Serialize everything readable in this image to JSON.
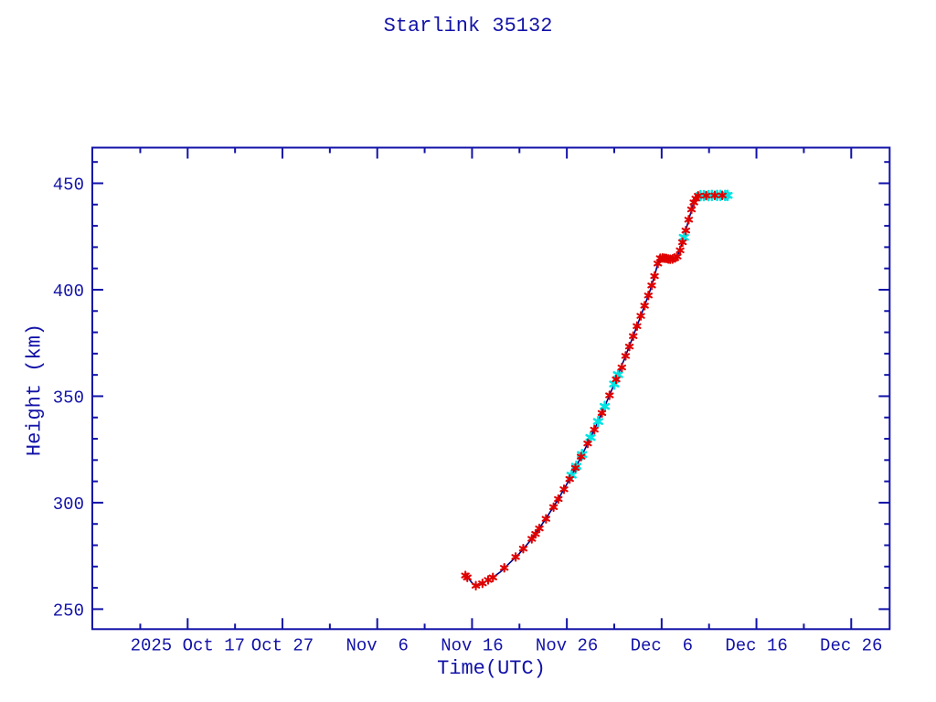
{
  "page": {
    "background_color": "#ffffff",
    "accent_color": "#1212a8"
  },
  "chart_data": {
    "type": "line",
    "title": "Starlink 35132",
    "xlabel": "Time(UTC)",
    "ylabel": "Height (km)",
    "grid": false,
    "legend": "none",
    "colors": {
      "axis": "#1212a8",
      "text": "#1212a8",
      "line": "#000080",
      "marker_red": "#e00000",
      "marker_cyan": "#00e4e4"
    },
    "x_unit": "days since 2025 Oct 17 (UTC)",
    "xlim_days": [
      -10.1,
      74.1
    ],
    "ylim": [
      240.5,
      466.5
    ],
    "y_major_ticks": [
      250,
      300,
      350,
      400,
      450
    ],
    "y_minor_step_km": 10,
    "x_major_ticks": [
      {
        "day": 0,
        "label": "2025 Oct 17"
      },
      {
        "day": 10,
        "label": "Oct 27"
      },
      {
        "day": 20,
        "label": "Nov  6"
      },
      {
        "day": 30,
        "label": "Nov 16"
      },
      {
        "day": 40,
        "label": "Nov 26"
      },
      {
        "day": 50,
        "label": "Dec  6"
      },
      {
        "day": 60,
        "label": "Dec 16"
      },
      {
        "day": 70,
        "label": "Dec 26"
      }
    ],
    "x_minor_tick_days": [
      -5,
      5,
      15,
      25,
      35,
      45,
      55,
      65
    ],
    "line": [
      [
        29.3,
        265.8
      ],
      [
        29.6,
        264.6
      ],
      [
        30.0,
        262.3
      ],
      [
        30.4,
        261.0
      ],
      [
        30.8,
        261.6
      ],
      [
        31.2,
        262.4
      ],
      [
        31.7,
        263.7
      ],
      [
        32.2,
        264.9
      ],
      [
        33.0,
        267.5
      ],
      [
        34.0,
        271.8
      ],
      [
        35.0,
        276.2
      ],
      [
        36.0,
        281.4
      ],
      [
        37.0,
        287.3
      ],
      [
        38.0,
        293.9
      ],
      [
        39.0,
        301.0
      ],
      [
        40.0,
        308.7
      ],
      [
        41.0,
        317.1
      ],
      [
        42.0,
        326.0
      ],
      [
        43.0,
        335.3
      ],
      [
        44.0,
        345.2
      ],
      [
        45.0,
        355.7
      ],
      [
        46.0,
        366.7
      ],
      [
        47.0,
        378.2
      ],
      [
        48.0,
        390.1
      ],
      [
        48.7,
        398.6
      ],
      [
        49.2,
        405.8
      ],
      [
        49.55,
        411.6
      ],
      [
        49.8,
        414.4
      ],
      [
        50.1,
        414.9
      ],
      [
        50.5,
        414.7
      ],
      [
        50.9,
        414.3
      ],
      [
        51.2,
        414.5
      ],
      [
        51.55,
        415.3
      ],
      [
        51.8,
        417.2
      ],
      [
        52.1,
        421.2
      ],
      [
        52.5,
        427.2
      ],
      [
        52.9,
        433.5
      ],
      [
        53.3,
        439.6
      ],
      [
        53.6,
        442.8
      ],
      [
        53.85,
        444.1
      ],
      [
        54.5,
        444.2
      ],
      [
        55.5,
        444.3
      ],
      [
        56.95,
        444.3
      ]
    ],
    "markers_red": [
      [
        29.3,
        265.8
      ],
      [
        29.5,
        264.9
      ],
      [
        30.4,
        261.0
      ],
      [
        31.1,
        262.1
      ],
      [
        31.7,
        263.7
      ],
      [
        32.2,
        264.9
      ],
      [
        33.4,
        269.4
      ],
      [
        34.6,
        274.5
      ],
      [
        35.4,
        278.4
      ],
      [
        36.3,
        283.0
      ],
      [
        36.7,
        285.3
      ],
      [
        37.1,
        287.9
      ],
      [
        37.8,
        292.4
      ],
      [
        38.6,
        297.9
      ],
      [
        39.1,
        301.7
      ],
      [
        39.7,
        306.3
      ],
      [
        40.3,
        311.1
      ],
      [
        40.9,
        316.3
      ],
      [
        41.5,
        321.6
      ],
      [
        42.2,
        327.8
      ],
      [
        42.9,
        334.3
      ],
      [
        43.7,
        342.1
      ],
      [
        44.5,
        350.4
      ],
      [
        45.2,
        357.9
      ],
      [
        45.8,
        363.5
      ],
      [
        46.2,
        368.9
      ],
      [
        46.6,
        373.3
      ],
      [
        47.0,
        378.2
      ],
      [
        47.4,
        382.9
      ],
      [
        47.8,
        387.7
      ],
      [
        48.2,
        392.5
      ],
      [
        48.6,
        397.3
      ],
      [
        48.95,
        402.0
      ],
      [
        49.25,
        406.4
      ],
      [
        49.6,
        412.3
      ],
      [
        49.85,
        414.8
      ],
      [
        50.1,
        414.9
      ],
      [
        50.3,
        414.8
      ],
      [
        50.5,
        414.7
      ],
      [
        50.7,
        414.4
      ],
      [
        50.9,
        414.3
      ],
      [
        51.15,
        414.4
      ],
      [
        51.4,
        414.9
      ],
      [
        51.65,
        415.6
      ],
      [
        51.95,
        418.5
      ],
      [
        52.2,
        422.3
      ],
      [
        52.55,
        427.8
      ],
      [
        52.85,
        432.9
      ],
      [
        53.15,
        437.7
      ],
      [
        53.4,
        441.0
      ],
      [
        53.6,
        442.8
      ],
      [
        53.85,
        444.1
      ],
      [
        54.7,
        444.2
      ],
      [
        55.6,
        444.3
      ],
      [
        56.4,
        444.3
      ]
    ],
    "markers_cyan": [
      [
        40.5,
        312.9
      ],
      [
        41.0,
        317.1
      ],
      [
        41.6,
        322.6
      ],
      [
        42.5,
        330.6
      ],
      [
        43.3,
        338.1
      ],
      [
        44.0,
        345.2
      ],
      [
        45.0,
        355.7
      ],
      [
        45.4,
        360.1
      ],
      [
        52.35,
        424.6
      ],
      [
        54.1,
        444.2
      ],
      [
        54.45,
        444.2
      ],
      [
        54.95,
        444.2
      ],
      [
        55.3,
        444.3
      ],
      [
        55.85,
        444.3
      ],
      [
        56.2,
        444.3
      ],
      [
        56.7,
        444.3
      ],
      [
        56.95,
        444.3
      ]
    ]
  }
}
